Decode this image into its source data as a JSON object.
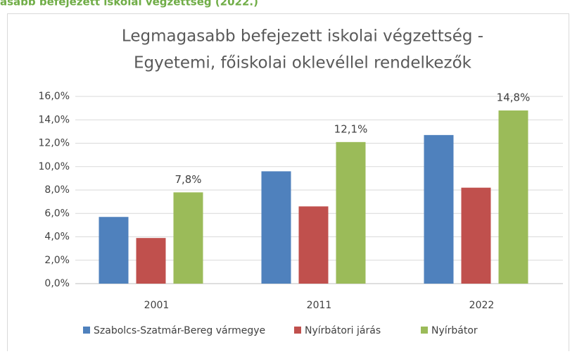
{
  "header": "asabb befejezett iskolai végzettség (2022.)",
  "chart_data": {
    "type": "bar",
    "title": [
      "Legmagasabb befejezett iskolai végzettség -",
      "Egyetemi, főiskolai oklevéllel rendelkezők"
    ],
    "categories": [
      "2001",
      "2011",
      "2022"
    ],
    "series": [
      {
        "name": "Szabolcs-Szatmár-Bereg vármegye",
        "color": "#4f81bd",
        "values": [
          5.7,
          9.6,
          12.7
        ]
      },
      {
        "name": "Nyírbátori járás",
        "color": "#c0504d",
        "values": [
          3.9,
          6.6,
          8.2
        ]
      },
      {
        "name": "Nyírbátor",
        "color": "#9bbb59",
        "values": [
          7.8,
          12.1,
          14.8
        ],
        "value_labels": [
          "7,8%",
          "12,1%",
          "14,8%"
        ]
      }
    ],
    "ylim": [
      0,
      16
    ],
    "yticks": [
      {
        "value": 0,
        "label": "0,0%"
      },
      {
        "value": 2,
        "label": "2,0%"
      },
      {
        "value": 4,
        "label": "4,0%"
      },
      {
        "value": 6,
        "label": "6,0%"
      },
      {
        "value": 8,
        "label": "8,0%"
      },
      {
        "value": 10,
        "label": "10,0%"
      },
      {
        "value": 12,
        "label": "12,0%"
      },
      {
        "value": 14,
        "label": "14,0%"
      },
      {
        "value": 16,
        "label": "16,0%"
      }
    ],
    "grid": true,
    "legend": "bottom"
  }
}
